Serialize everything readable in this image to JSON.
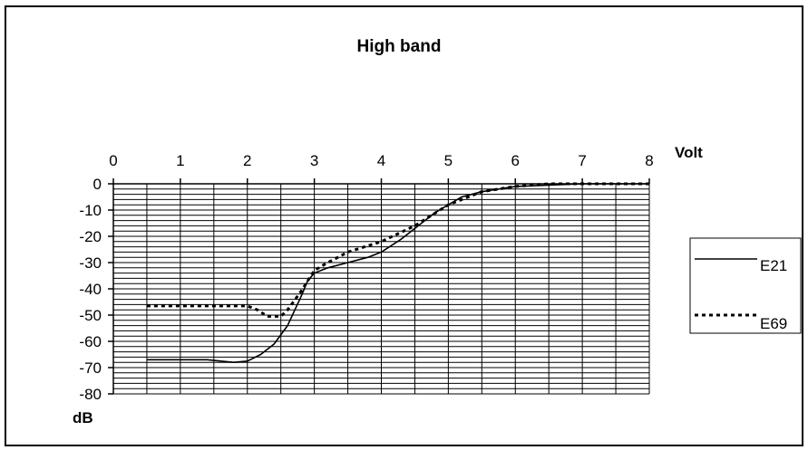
{
  "chart_data": {
    "type": "line",
    "title": "High band",
    "xlabel": "Volt",
    "ylabel": "dB",
    "x_axis_position": "top",
    "xlim": [
      0,
      8
    ],
    "ylim": [
      -80,
      0
    ],
    "x_ticks": [
      "0",
      "1",
      "2",
      "3",
      "4",
      "5",
      "6",
      "7",
      "8"
    ],
    "y_ticks": [
      "0",
      "-10",
      "-20",
      "-30",
      "-40",
      "-50",
      "-60",
      "-70",
      "-80"
    ],
    "grid": true,
    "legend_position": "right",
    "series": [
      {
        "name": "E21",
        "style": "solid",
        "color": "#000000",
        "points": [
          [
            0.5,
            -67
          ],
          [
            1.0,
            -67
          ],
          [
            1.4,
            -67
          ],
          [
            1.8,
            -68
          ],
          [
            2.0,
            -67.5
          ],
          [
            2.2,
            -65
          ],
          [
            2.4,
            -61
          ],
          [
            2.6,
            -54
          ],
          [
            2.8,
            -43
          ],
          [
            2.9,
            -37
          ],
          [
            3.0,
            -34
          ],
          [
            3.2,
            -32
          ],
          [
            3.5,
            -30
          ],
          [
            3.8,
            -28
          ],
          [
            4.0,
            -26
          ],
          [
            4.3,
            -21
          ],
          [
            4.6,
            -15
          ],
          [
            4.8,
            -11
          ],
          [
            5.0,
            -8
          ],
          [
            5.2,
            -5
          ],
          [
            5.5,
            -3
          ],
          [
            6.0,
            -1
          ],
          [
            6.5,
            -0.5
          ],
          [
            7.0,
            0
          ],
          [
            8.0,
            0
          ]
        ]
      },
      {
        "name": "E69",
        "style": "dotted",
        "color": "#000000",
        "points": [
          [
            0.5,
            -46.5
          ],
          [
            1.0,
            -46.5
          ],
          [
            1.5,
            -46.5
          ],
          [
            2.0,
            -46.5
          ],
          [
            2.15,
            -48
          ],
          [
            2.3,
            -50.5
          ],
          [
            2.5,
            -50.5
          ],
          [
            2.6,
            -48
          ],
          [
            2.8,
            -41
          ],
          [
            3.0,
            -33
          ],
          [
            3.2,
            -30
          ],
          [
            3.5,
            -26
          ],
          [
            4.0,
            -22
          ],
          [
            4.5,
            -16
          ],
          [
            5.0,
            -8
          ],
          [
            5.5,
            -3
          ],
          [
            6.0,
            -1
          ],
          [
            6.5,
            0
          ],
          [
            7.0,
            0
          ],
          [
            8.0,
            0
          ]
        ]
      }
    ]
  }
}
